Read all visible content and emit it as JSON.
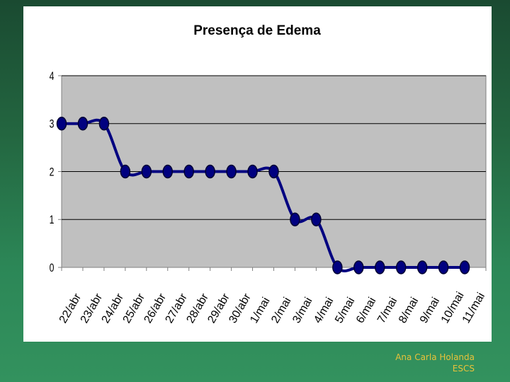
{
  "footer": {
    "author": "Ana Carla Holanda",
    "institution": "ESCS"
  },
  "chart_data": {
    "type": "line",
    "title": "Presença de Edema",
    "xlabel": "",
    "ylabel": "",
    "ylim": [
      0,
      4
    ],
    "yticks": [
      "0",
      "1",
      "2",
      "3",
      "4"
    ],
    "categories": [
      "22/abr",
      "23/abr",
      "24/abr",
      "25/abr",
      "26/abr",
      "27/abr",
      "28/abr",
      "29/abr",
      "30/abr",
      "1/mai",
      "2/mai",
      "3/mai",
      "4/mai",
      "5/mai",
      "6/mai",
      "7/mai",
      "8/mai",
      "9/mai",
      "10/mai",
      "11/mai"
    ],
    "series": [
      {
        "values": [
          3,
          3,
          3,
          2,
          2,
          2,
          2,
          2,
          2,
          2,
          2,
          1,
          1,
          0,
          0,
          0,
          0,
          0,
          0,
          0
        ]
      }
    ],
    "grid": true,
    "legend": "none",
    "colors": {
      "plot_bg": "#c0c0c0",
      "line": "#000080",
      "marker": "#000080",
      "grid": "#000000"
    }
  }
}
